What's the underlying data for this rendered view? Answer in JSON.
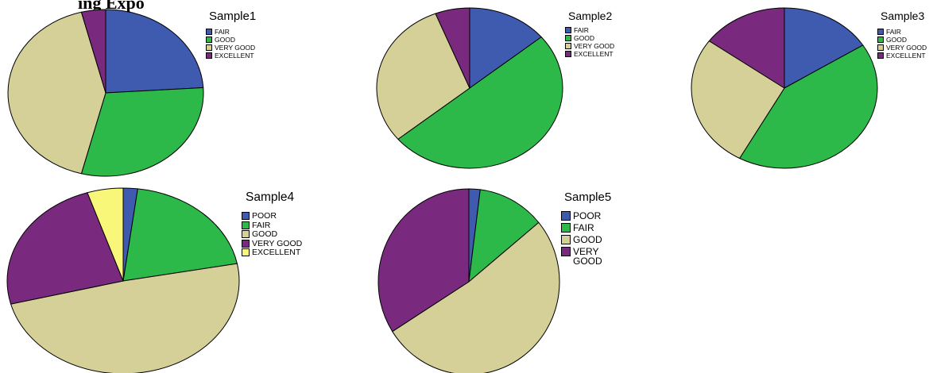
{
  "page": {
    "title": "ing Expo"
  },
  "colors": {
    "POOR": "#3f5bb0",
    "FAIR": "#2db84a",
    "GOOD": "#d5cf98",
    "VERY GOOD": "#7a2a7e",
    "EXCELLENT": "#f9f77a"
  },
  "chart_data": [
    {
      "type": "pie",
      "title": "Sample1",
      "categories": [
        "FAIR",
        "GOOD",
        "VERY GOOD",
        "EXCELLENT"
      ],
      "values": [
        24,
        30,
        42,
        4
      ],
      "colors": [
        "#3f5bb0",
        "#2db84a",
        "#d5cf98",
        "#7a2a7e"
      ],
      "legend_labels": [
        "FAIR",
        "GOOD",
        "VERY GOOD",
        "EXCELLENT"
      ],
      "legend": "right"
    },
    {
      "type": "pie",
      "title": "Sample2",
      "categories": [
        "FAIR",
        "GOOD",
        "VERY GOOD",
        "EXCELLENT"
      ],
      "values": [
        14,
        50,
        30,
        6
      ],
      "colors": [
        "#3f5bb0",
        "#2db84a",
        "#d5cf98",
        "#7a2a7e"
      ],
      "legend_labels": [
        "FAIR",
        "GOOD",
        "VERY GOOD",
        "EXCELLENT"
      ],
      "legend": "right"
    },
    {
      "type": "pie",
      "title": "Sample3",
      "categories": [
        "FAIR",
        "GOOD",
        "VERY GOOD",
        "EXCELLENT"
      ],
      "values": [
        16,
        42,
        27,
        15
      ],
      "colors": [
        "#3f5bb0",
        "#2db84a",
        "#d5cf98",
        "#7a2a7e"
      ],
      "legend_labels": [
        "FAIR",
        "GOOD",
        "VERY GOOD",
        "EXCELLENT"
      ],
      "legend": "right"
    },
    {
      "type": "pie",
      "title": "Sample4",
      "categories": [
        "POOR",
        "FAIR",
        "GOOD",
        "VERY GOOD",
        "EXCELLENT"
      ],
      "values": [
        2,
        20,
        49,
        24,
        5
      ],
      "colors": [
        "#3f5bb0",
        "#2db84a",
        "#d5cf98",
        "#7a2a7e",
        "#f9f77a"
      ],
      "legend_labels": [
        "POOR",
        "FAIR",
        "GOOD",
        "VERY GOOD",
        "EXCELLENT"
      ],
      "legend": "right"
    },
    {
      "type": "pie",
      "title": "Sample5",
      "categories": [
        "POOR",
        "FAIR",
        "GOOD",
        "VERY GOOD"
      ],
      "values": [
        2,
        12,
        52,
        34
      ],
      "colors": [
        "#3f5bb0",
        "#2db84a",
        "#d5cf98",
        "#7a2a7e"
      ],
      "legend_labels": [
        "POOR",
        "FAIR",
        "GOOD",
        "VERY\nGOOD"
      ],
      "legend": "right"
    }
  ]
}
